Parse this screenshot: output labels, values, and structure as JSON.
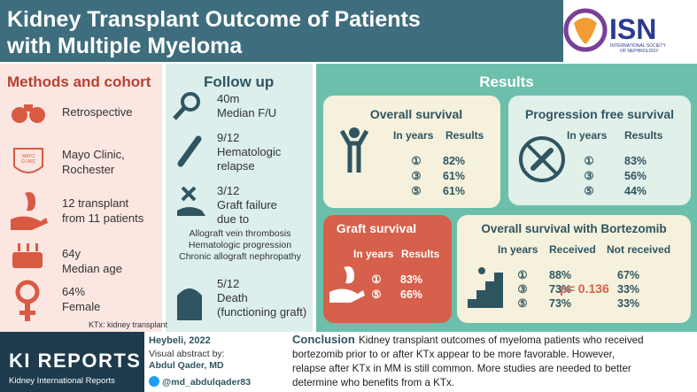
{
  "header": {
    "title_lines": [
      "Kidney Transplant Outcome of Patients",
      "with Multiple Myeloma"
    ],
    "logo": {
      "acronym": "ISN",
      "name_lines": [
        "INTERNATIONAL SOCIETY",
        "OF NEPHROLOGY"
      ]
    }
  },
  "methods": {
    "title": "Methods and cohort",
    "items": [
      {
        "lines": [
          "Retrospective"
        ]
      },
      {
        "lines": [
          "Mayo Clinic,",
          "Rochester"
        ]
      },
      {
        "lines": [
          "12 transplant",
          "from 11 patients"
        ]
      },
      {
        "lines": [
          "64y",
          "Median age"
        ]
      },
      {
        "lines": [
          "64%",
          "Female"
        ]
      }
    ],
    "mayo_logo_lines": [
      "MAYO",
      "CLINIC"
    ],
    "footnote": "KTx: kidney transplant"
  },
  "follow_up": {
    "title": "Follow up",
    "items": [
      {
        "lines": [
          "40m",
          "Median F/U"
        ]
      },
      {
        "lines": [
          "9/12",
          "Hematologic",
          "relapse"
        ]
      },
      {
        "lines": [
          "3/12",
          "Graft failure",
          "due to"
        ]
      },
      {
        "lines": [
          "5/12",
          "Death",
          "(functioning graft)"
        ]
      }
    ],
    "causes": [
      "Allograft vein thrombosis",
      "Hematologic progression",
      "Chronic allograft nephropathy"
    ]
  },
  "results": {
    "title": "Results",
    "overall_survival": {
      "title": "Overall survival",
      "columns": [
        "In years",
        "Results"
      ],
      "rows": [
        [
          "①",
          "82%"
        ],
        [
          "③",
          "61%"
        ],
        [
          "⑤",
          "61%"
        ]
      ]
    },
    "progression_free_survival": {
      "title": "Progression free survival",
      "columns": [
        "In years",
        "Results"
      ],
      "rows": [
        [
          "①",
          "83%"
        ],
        [
          "③",
          "56%"
        ],
        [
          "⑤",
          "44%"
        ]
      ]
    },
    "graft_survival": {
      "title": "Graft survival",
      "columns": [
        "In years",
        "Results"
      ],
      "rows": [
        [
          "①",
          "83%"
        ],
        [
          "⑤",
          "66%"
        ]
      ]
    },
    "bortezomib": {
      "title": "Overall survival with Bortezomib",
      "columns": [
        "In years",
        "Received",
        "Not received"
      ],
      "rows": [
        [
          "①",
          "88%",
          "67%"
        ],
        [
          "③",
          "73%",
          "33%"
        ],
        [
          "⑤",
          "73%",
          "33%"
        ]
      ],
      "p_value": "p= 0.136"
    }
  },
  "footer": {
    "journal": {
      "name": "KI REPORTS",
      "subtitle": "Kidney International Reports"
    },
    "citation": "Heybeli, 2022",
    "visual_abstract_by": "Visual abstract by:",
    "author": "Abdul Qader, MD",
    "handle": "@md_abdulqader83",
    "conclusion_label": "Conclusion",
    "conclusion_lines": [
      "Kidney transplant outcomes of myeloma patients who received",
      "bortezomib prior to or after KTx appear to be more favorable. However,",
      "relapse after KTx in MM is still common. More studies are needed to better",
      "determine who benefits from a KTx."
    ]
  }
}
